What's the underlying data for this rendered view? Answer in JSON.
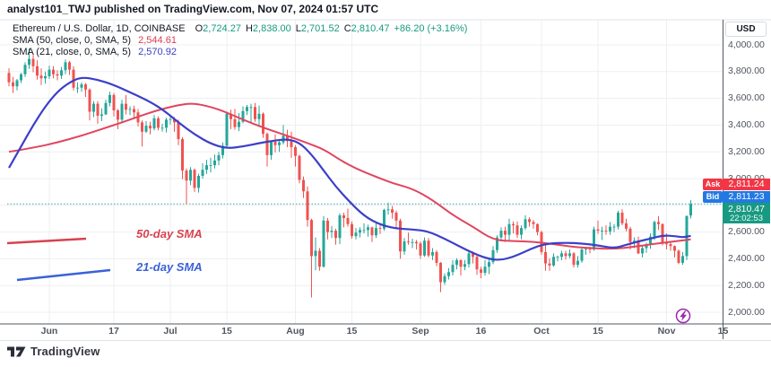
{
  "published_bar": {
    "text": "analyst101_TWJ published on TradingView.com, Nov 07, 2024 01:57 UTC"
  },
  "legend": {
    "title": "Ethereum / U.S. Dollar, 1D, COINBASE",
    "ohlc": [
      [
        "O",
        "2,724.27"
      ],
      [
        "H",
        "2,838.00"
      ],
      [
        "L",
        "2,701.52"
      ],
      [
        "C",
        "2,810.47"
      ]
    ],
    "change": "+86.20 (+3.16%)",
    "rows": [
      {
        "label": "SMA (50, close, 0, SMA, 5)",
        "value": "2,544.61"
      },
      {
        "label": "SMA (21, close, 0, SMA, 5)",
        "value": "2,570.92"
      }
    ]
  },
  "price_axis": {
    "currency_button": "USD"
  },
  "badges": {
    "ask": {
      "label": "Ask",
      "value": "2,811.24"
    },
    "bid": {
      "label": "Bid",
      "value": "2,811.23"
    },
    "last": {
      "value": "2,810.47",
      "countdown": "22:02:53"
    }
  },
  "annotations": {
    "sma50": {
      "text": "50-day SMA",
      "line": [
        [
          8,
          271
        ],
        [
          96,
          266
        ]
      ]
    },
    "sma21": {
      "text": "21-day SMA",
      "line": [
        [
          19,
          312
        ],
        [
          123,
          301
        ]
      ]
    }
  },
  "footer": {
    "brand": "TradingView",
    "icon": "tradingview-logo-icon"
  },
  "colors": {
    "up": "#26a69a",
    "down": "#ef5350",
    "sma50_line": "#e0455e",
    "sma21_line": "#3c3fc8",
    "anno_red": "#d8424f",
    "anno_blue": "#3a62d8",
    "ask_bg": "#f23645",
    "bid_bg": "#2379e3",
    "last_bg": "#189a82",
    "dotted_price_line": "#2a9d8f",
    "grid": "#edeff3",
    "axis_line": "#535861",
    "light_border": "#e0e3eb",
    "bolt": "#9c27b0"
  },
  "chart_data": {
    "type": "candlestick",
    "symbol": "Ethereum / U.S. Dollar",
    "interval": "1D",
    "exchange": "COINBASE",
    "start_date": "2024-05-22",
    "last_bar": {
      "open": 2724.27,
      "high": 2838.0,
      "low": 2701.52,
      "close": 2810.47,
      "change": "+86.20 (+3.16%)"
    },
    "indicators": {
      "sma50_last": 2544.61,
      "sma21_last": 2570.92
    },
    "ask": 2811.24,
    "bid": 2811.23,
    "countdown": "22:02:53",
    "ylim": [
      1920,
      4190
    ],
    "y_ticks": [
      4000,
      3800,
      3600,
      3400,
      3200,
      3000,
      2800,
      2600,
      2400,
      2200,
      2000
    ],
    "x_ticks": [
      {
        "label": "Jun",
        "i": 10
      },
      {
        "label": "17",
        "i": 26
      },
      {
        "label": "Jul",
        "i": 40
      },
      {
        "label": "15",
        "i": 54
      },
      {
        "label": "Aug",
        "i": 71
      },
      {
        "label": "15",
        "i": 85
      },
      {
        "label": "Sep",
        "i": 102
      },
      {
        "label": "16",
        "i": 117
      },
      {
        "label": "Oct",
        "i": 132
      },
      {
        "label": "15",
        "i": 146
      },
      {
        "label": "Nov",
        "i": 163
      },
      {
        "label": "15",
        "i": 177
      }
    ],
    "candles": [
      [
        3790,
        3825,
        3690,
        3720
      ],
      [
        3720,
        3760,
        3640,
        3690
      ],
      [
        3690,
        3745,
        3660,
        3735
      ],
      [
        3735,
        3790,
        3715,
        3780
      ],
      [
        3780,
        3870,
        3760,
        3850
      ],
      [
        3850,
        3975,
        3820,
        3895
      ],
      [
        3895,
        3925,
        3795,
        3840
      ],
      [
        3840,
        3885,
        3740,
        3770
      ],
      [
        3770,
        3825,
        3700,
        3750
      ],
      [
        3750,
        3800,
        3710,
        3765
      ],
      [
        3765,
        3845,
        3745,
        3815
      ],
      [
        3815,
        3840,
        3750,
        3780
      ],
      [
        3780,
        3810,
        3735,
        3770
      ],
      [
        3770,
        3835,
        3745,
        3810
      ],
      [
        3810,
        3890,
        3780,
        3870
      ],
      [
        3870,
        3880,
        3775,
        3815
      ],
      [
        3815,
        3840,
        3660,
        3680
      ],
      [
        3680,
        3720,
        3640,
        3680
      ],
      [
        3680,
        3720,
        3650,
        3705
      ],
      [
        3705,
        3715,
        3610,
        3665
      ],
      [
        3665,
        3675,
        3435,
        3500
      ],
      [
        3500,
        3580,
        3460,
        3560
      ],
      [
        3560,
        3580,
        3410,
        3470
      ],
      [
        3470,
        3525,
        3430,
        3480
      ],
      [
        3480,
        3590,
        3475,
        3565
      ],
      [
        3565,
        3650,
        3540,
        3625
      ],
      [
        3625,
        3640,
        3465,
        3510
      ],
      [
        3510,
        3520,
        3370,
        3440
      ],
      [
        3440,
        3590,
        3425,
        3560
      ],
      [
        3560,
        3625,
        3480,
        3515
      ],
      [
        3515,
        3540,
        3475,
        3520
      ],
      [
        3520,
        3545,
        3445,
        3495
      ],
      [
        3495,
        3520,
        3390,
        3420
      ],
      [
        3420,
        3435,
        3240,
        3350
      ],
      [
        3350,
        3430,
        3340,
        3395
      ],
      [
        3395,
        3425,
        3330,
        3375
      ],
      [
        3375,
        3475,
        3360,
        3450
      ],
      [
        3450,
        3465,
        3360,
        3380
      ],
      [
        3380,
        3410,
        3350,
        3380
      ],
      [
        3380,
        3455,
        3345,
        3440
      ],
      [
        3440,
        3470,
        3405,
        3445
      ],
      [
        3445,
        3460,
        3350,
        3420
      ],
      [
        3420,
        3440,
        3250,
        3295
      ],
      [
        3295,
        3310,
        2995,
        3060
      ],
      [
        3060,
        3075,
        2810,
        2985
      ],
      [
        2985,
        3085,
        2950,
        3065
      ],
      [
        3065,
        3075,
        2900,
        2930
      ],
      [
        2930,
        3035,
        2895,
        3020
      ],
      [
        3020,
        3115,
        3000,
        3065
      ],
      [
        3065,
        3140,
        3035,
        3100
      ],
      [
        3100,
        3155,
        3045,
        3100
      ],
      [
        3100,
        3180,
        3075,
        3135
      ],
      [
        3135,
        3200,
        3100,
        3175
      ],
      [
        3175,
        3270,
        3150,
        3245
      ],
      [
        3245,
        3500,
        3230,
        3485
      ],
      [
        3485,
        3515,
        3370,
        3445
      ],
      [
        3445,
        3520,
        3365,
        3385
      ],
      [
        3385,
        3490,
        3355,
        3425
      ],
      [
        3425,
        3540,
        3415,
        3505
      ],
      [
        3505,
        3550,
        3475,
        3535
      ],
      [
        3535,
        3560,
        3415,
        3535
      ],
      [
        3535,
        3565,
        3425,
        3445
      ],
      [
        3445,
        3545,
        3390,
        3485
      ],
      [
        3485,
        3495,
        3305,
        3335
      ],
      [
        3335,
        3345,
        3090,
        3175
      ],
      [
        3175,
        3285,
        3140,
        3275
      ],
      [
        3275,
        3330,
        3195,
        3250
      ],
      [
        3250,
        3290,
        3200,
        3270
      ],
      [
        3270,
        3400,
        3255,
        3320
      ],
      [
        3320,
        3365,
        3235,
        3280
      ],
      [
        3280,
        3350,
        3155,
        3235
      ],
      [
        3235,
        3250,
        3090,
        3170
      ],
      [
        3170,
        3180,
        2965,
        2990
      ],
      [
        2990,
        3015,
        2855,
        2905
      ],
      [
        2905,
        2940,
        2640,
        2690
      ],
      [
        2690,
        2700,
        2111,
        2420
      ],
      [
        2420,
        2560,
        2315,
        2460
      ],
      [
        2460,
        2480,
        2310,
        2340
      ],
      [
        2340,
        2720,
        2335,
        2685
      ],
      [
        2685,
        2705,
        2545,
        2600
      ],
      [
        2600,
        2645,
        2555,
        2610
      ],
      [
        2610,
        2625,
        2505,
        2555
      ],
      [
        2555,
        2740,
        2510,
        2725
      ],
      [
        2725,
        2745,
        2635,
        2705
      ],
      [
        2705,
        2775,
        2640,
        2660
      ],
      [
        2660,
        2680,
        2550,
        2570
      ],
      [
        2570,
        2630,
        2545,
        2595
      ],
      [
        2595,
        2635,
        2560,
        2615
      ],
      [
        2615,
        2665,
        2590,
        2615
      ],
      [
        2615,
        2655,
        2565,
        2635
      ],
      [
        2635,
        2640,
        2525,
        2575
      ],
      [
        2575,
        2665,
        2555,
        2630
      ],
      [
        2630,
        2650,
        2585,
        2625
      ],
      [
        2625,
        2775,
        2610,
        2765
      ],
      [
        2765,
        2820,
        2730,
        2770
      ],
      [
        2770,
        2795,
        2700,
        2745
      ],
      [
        2745,
        2760,
        2630,
        2685
      ],
      [
        2685,
        2700,
        2400,
        2455
      ],
      [
        2455,
        2555,
        2430,
        2530
      ],
      [
        2530,
        2595,
        2505,
        2525
      ],
      [
        2525,
        2550,
        2480,
        2525
      ],
      [
        2525,
        2540,
        2470,
        2515
      ],
      [
        2515,
        2530,
        2400,
        2425
      ],
      [
        2425,
        2560,
        2415,
        2535
      ],
      [
        2535,
        2555,
        2410,
        2425
      ],
      [
        2425,
        2480,
        2390,
        2450
      ],
      [
        2450,
        2465,
        2345,
        2370
      ],
      [
        2370,
        2375,
        2150,
        2225
      ],
      [
        2225,
        2290,
        2205,
        2270
      ],
      [
        2270,
        2330,
        2245,
        2300
      ],
      [
        2300,
        2390,
        2275,
        2355
      ],
      [
        2355,
        2405,
        2320,
        2390
      ],
      [
        2390,
        2395,
        2275,
        2340
      ],
      [
        2340,
        2390,
        2315,
        2360
      ],
      [
        2360,
        2465,
        2335,
        2440
      ],
      [
        2440,
        2455,
        2365,
        2415
      ],
      [
        2415,
        2425,
        2280,
        2320
      ],
      [
        2320,
        2340,
        2255,
        2295
      ],
      [
        2295,
        2390,
        2275,
        2340
      ],
      [
        2340,
        2395,
        2285,
        2375
      ],
      [
        2375,
        2495,
        2360,
        2465
      ],
      [
        2465,
        2575,
        2445,
        2560
      ],
      [
        2560,
        2635,
        2530,
        2610
      ],
      [
        2610,
        2640,
        2525,
        2580
      ],
      [
        2580,
        2700,
        2540,
        2660
      ],
      [
        2660,
        2680,
        2590,
        2650
      ],
      [
        2650,
        2680,
        2555,
        2580
      ],
      [
        2580,
        2650,
        2545,
        2630
      ],
      [
        2630,
        2725,
        2615,
        2695
      ],
      [
        2695,
        2710,
        2640,
        2675
      ],
      [
        2675,
        2690,
        2625,
        2660
      ],
      [
        2660,
        2665,
        2575,
        2600
      ],
      [
        2600,
        2610,
        2430,
        2450
      ],
      [
        2450,
        2500,
        2310,
        2365
      ],
      [
        2365,
        2405,
        2310,
        2350
      ],
      [
        2350,
        2440,
        2340,
        2415
      ],
      [
        2415,
        2425,
        2380,
        2415
      ],
      [
        2415,
        2460,
        2390,
        2440
      ],
      [
        2440,
        2460,
        2395,
        2420
      ],
      [
        2420,
        2470,
        2405,
        2440
      ],
      [
        2440,
        2450,
        2335,
        2355
      ],
      [
        2355,
        2420,
        2335,
        2385
      ],
      [
        2385,
        2480,
        2370,
        2470
      ],
      [
        2470,
        2490,
        2430,
        2475
      ],
      [
        2475,
        2490,
        2440,
        2470
      ],
      [
        2470,
        2640,
        2460,
        2620
      ],
      [
        2620,
        2685,
        2585,
        2610
      ],
      [
        2610,
        2640,
        2540,
        2610
      ],
      [
        2610,
        2650,
        2580,
        2605
      ],
      [
        2605,
        2675,
        2580,
        2640
      ],
      [
        2640,
        2660,
        2600,
        2640
      ],
      [
        2640,
        2760,
        2620,
        2745
      ],
      [
        2745,
        2770,
        2650,
        2665
      ],
      [
        2665,
        2700,
        2605,
        2625
      ],
      [
        2625,
        2640,
        2470,
        2525
      ],
      [
        2525,
        2560,
        2480,
        2535
      ],
      [
        2535,
        2565,
        2435,
        2440
      ],
      [
        2440,
        2500,
        2410,
        2480
      ],
      [
        2480,
        2520,
        2445,
        2505
      ],
      [
        2505,
        2590,
        2475,
        2565
      ],
      [
        2565,
        2685,
        2540,
        2675
      ],
      [
        2675,
        2720,
        2615,
        2660
      ],
      [
        2660,
        2665,
        2500,
        2515
      ],
      [
        2515,
        2590,
        2470,
        2510
      ],
      [
        2510,
        2525,
        2460,
        2495
      ],
      [
        2495,
        2500,
        2410,
        2460
      ],
      [
        2460,
        2470,
        2360,
        2370
      ],
      [
        2370,
        2450,
        2355,
        2420
      ],
      [
        2420,
        2725,
        2390,
        2720
      ],
      [
        2724.27,
        2838,
        2701.52,
        2810.47
      ]
    ],
    "sma50_points": [
      [
        0,
        3200
      ],
      [
        6,
        3230
      ],
      [
        12,
        3270
      ],
      [
        18,
        3320
      ],
      [
        24,
        3380
      ],
      [
        30,
        3440
      ],
      [
        36,
        3505
      ],
      [
        42,
        3550
      ],
      [
        46,
        3565
      ],
      [
        52,
        3520
      ],
      [
        58,
        3440
      ],
      [
        64,
        3370
      ],
      [
        70,
        3310
      ],
      [
        74,
        3265
      ],
      [
        78,
        3220
      ],
      [
        82,
        3140
      ],
      [
        86,
        3075
      ],
      [
        90,
        3025
      ],
      [
        95,
        2965
      ],
      [
        100,
        2925
      ],
      [
        105,
        2840
      ],
      [
        110,
        2726
      ],
      [
        115,
        2640
      ],
      [
        120,
        2540
      ],
      [
        125,
        2532
      ],
      [
        130,
        2528
      ],
      [
        135,
        2510
      ],
      [
        140,
        2488
      ],
      [
        145,
        2478
      ],
      [
        150,
        2474
      ],
      [
        155,
        2490
      ],
      [
        160,
        2512
      ],
      [
        165,
        2530
      ],
      [
        169,
        2545
      ]
    ],
    "sma21_points": [
      [
        0,
        3080
      ],
      [
        3,
        3240
      ],
      [
        6,
        3400
      ],
      [
        9,
        3540
      ],
      [
        12,
        3650
      ],
      [
        15,
        3720
      ],
      [
        18,
        3760
      ],
      [
        22,
        3740
      ],
      [
        26,
        3700
      ],
      [
        30,
        3645
      ],
      [
        34,
        3590
      ],
      [
        38,
        3520
      ],
      [
        42,
        3420
      ],
      [
        46,
        3330
      ],
      [
        50,
        3260
      ],
      [
        54,
        3225
      ],
      [
        58,
        3240
      ],
      [
        62,
        3265
      ],
      [
        66,
        3285
      ],
      [
        69,
        3295
      ],
      [
        72,
        3270
      ],
      [
        75,
        3180
      ],
      [
        78,
        3060
      ],
      [
        81,
        2940
      ],
      [
        84,
        2840
      ],
      [
        88,
        2720
      ],
      [
        92,
        2655
      ],
      [
        96,
        2625
      ],
      [
        100,
        2620
      ],
      [
        104,
        2605
      ],
      [
        108,
        2550
      ],
      [
        112,
        2487
      ],
      [
        116,
        2430
      ],
      [
        119,
        2398
      ],
      [
        122,
        2390
      ],
      [
        125,
        2415
      ],
      [
        128,
        2455
      ],
      [
        131,
        2495
      ],
      [
        134,
        2515
      ],
      [
        138,
        2520
      ],
      [
        142,
        2515
      ],
      [
        146,
        2500
      ],
      [
        150,
        2478
      ],
      [
        153,
        2505
      ],
      [
        156,
        2530
      ],
      [
        159,
        2550
      ],
      [
        162,
        2575
      ],
      [
        165,
        2570
      ],
      [
        167,
        2560
      ],
      [
        169,
        2571
      ]
    ]
  }
}
